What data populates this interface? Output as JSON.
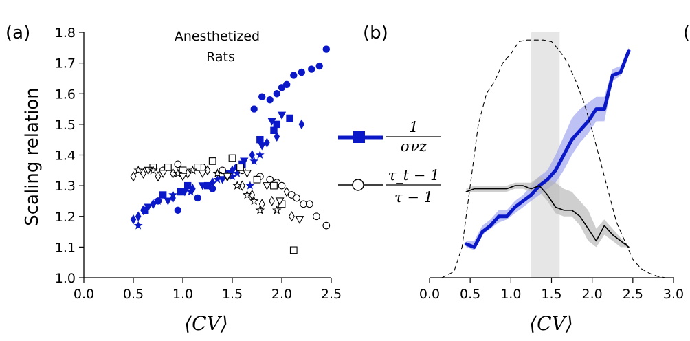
{
  "panel_labels": {
    "a": "(a)",
    "b": "(b)",
    "c": "("
  },
  "legend": {
    "sigma_entry": {
      "numerator": "1",
      "denominator": "σνz",
      "color": "#0a18c8",
      "marker": "square"
    },
    "tau_entry": {
      "numerator": "τ_t − 1",
      "denominator": "τ − 1",
      "color": "#000000",
      "marker": "open-circle"
    }
  },
  "chart_data": [
    {
      "type": "scatter",
      "panel": "(a)",
      "title": "Anesthetized\nRats",
      "xlabel": "⟨CV⟩",
      "ylabel": "Scaling relation",
      "xlim": [
        0.0,
        2.5
      ],
      "ylim": [
        1.0,
        1.8
      ],
      "xticks": [
        "0.0",
        "0.5",
        "1.0",
        "1.5",
        "2.0",
        "2.5"
      ],
      "yticks": [
        "1.0",
        "1.1",
        "1.2",
        "1.3",
        "1.4",
        "1.5",
        "1.6",
        "1.7",
        "1.8"
      ],
      "grid": false,
      "series": [
        {
          "group": "sigma",
          "marker": "diamond",
          "color": "#0a18c8",
          "filled": true,
          "points": [
            [
              0.5,
              1.19
            ],
            [
              0.55,
              1.2
            ],
            [
              0.6,
              1.22
            ],
            [
              0.7,
              1.24
            ],
            [
              0.9,
              1.26
            ],
            [
              1.1,
              1.29
            ],
            [
              1.3,
              1.31
            ],
            [
              1.5,
              1.35
            ],
            [
              1.7,
              1.4
            ],
            [
              1.85,
              1.44
            ],
            [
              1.95,
              1.46
            ],
            [
              2.2,
              1.5
            ]
          ]
        },
        {
          "group": "sigma",
          "marker": "circle",
          "color": "#0a18c8",
          "filled": true,
          "points": [
            [
              0.75,
              1.25
            ],
            [
              0.95,
              1.22
            ],
            [
              1.15,
              1.26
            ],
            [
              1.3,
              1.29
            ],
            [
              1.55,
              1.36
            ],
            [
              1.72,
              1.55
            ],
            [
              1.8,
              1.59
            ],
            [
              1.88,
              1.58
            ],
            [
              1.95,
              1.6
            ],
            [
              2.0,
              1.62
            ],
            [
              2.05,
              1.63
            ],
            [
              2.12,
              1.66
            ],
            [
              2.2,
              1.67
            ],
            [
              2.3,
              1.68
            ],
            [
              2.38,
              1.69
            ],
            [
              2.45,
              1.745
            ]
          ]
        },
        {
          "group": "sigma",
          "marker": "square",
          "color": "#0a18c8",
          "filled": true,
          "points": [
            [
              0.62,
              1.22
            ],
            [
              0.8,
              1.27
            ],
            [
              0.98,
              1.28
            ],
            [
              1.05,
              1.3
            ],
            [
              1.25,
              1.3
            ],
            [
              1.45,
              1.34
            ],
            [
              1.6,
              1.37
            ],
            [
              1.78,
              1.45
            ],
            [
              1.92,
              1.48
            ],
            [
              1.95,
              1.5
            ],
            [
              2.08,
              1.52
            ]
          ]
        },
        {
          "group": "sigma",
          "marker": "triangle-down",
          "color": "#0a18c8",
          "filled": true,
          "points": [
            [
              0.65,
              1.23
            ],
            [
              0.85,
              1.25
            ],
            [
              1.02,
              1.28
            ],
            [
              1.2,
              1.3
            ],
            [
              1.4,
              1.32
            ],
            [
              1.62,
              1.38
            ],
            [
              1.8,
              1.43
            ],
            [
              1.9,
              1.51
            ],
            [
              2.0,
              1.53
            ]
          ]
        },
        {
          "group": "sigma",
          "marker": "star",
          "color": "#0a18c8",
          "filled": true,
          "points": [
            [
              0.55,
              1.17
            ],
            [
              0.75,
              1.25
            ],
            [
              0.9,
              1.27
            ],
            [
              1.08,
              1.28
            ],
            [
              1.35,
              1.32
            ],
            [
              1.5,
              1.33
            ],
            [
              1.55,
              1.34
            ],
            [
              1.68,
              1.3
            ],
            [
              1.72,
              1.38
            ],
            [
              1.78,
              1.4
            ]
          ]
        },
        {
          "group": "tau",
          "marker": "diamond",
          "color": "#000000",
          "filled": false,
          "points": [
            [
              0.5,
              1.33
            ],
            [
              0.6,
              1.34
            ],
            [
              0.75,
              1.33
            ],
            [
              0.9,
              1.34
            ],
            [
              1.05,
              1.34
            ],
            [
              1.25,
              1.35
            ],
            [
              1.45,
              1.33
            ],
            [
              1.6,
              1.3
            ],
            [
              1.7,
              1.27
            ],
            [
              1.8,
              1.24
            ],
            [
              1.9,
              1.25
            ],
            [
              2.05,
              1.28
            ],
            [
              2.1,
              1.2
            ]
          ]
        },
        {
          "group": "tau",
          "marker": "circle",
          "color": "#000000",
          "filled": false,
          "points": [
            [
              0.8,
              1.35
            ],
            [
              0.95,
              1.37
            ],
            [
              1.2,
              1.36
            ],
            [
              1.4,
              1.35
            ],
            [
              1.6,
              1.35
            ],
            [
              1.78,
              1.33
            ],
            [
              1.88,
              1.32
            ],
            [
              1.95,
              1.31
            ],
            [
              2.0,
              1.3
            ],
            [
              2.1,
              1.27
            ],
            [
              2.15,
              1.26
            ],
            [
              2.22,
              1.24
            ],
            [
              2.28,
              1.24
            ],
            [
              2.35,
              1.2
            ],
            [
              2.45,
              1.17
            ]
          ]
        },
        {
          "group": "tau",
          "marker": "square",
          "color": "#000000",
          "filled": false,
          "points": [
            [
              0.7,
              1.36
            ],
            [
              0.85,
              1.36
            ],
            [
              1.0,
              1.35
            ],
            [
              1.15,
              1.36
            ],
            [
              1.3,
              1.38
            ],
            [
              1.5,
              1.39
            ],
            [
              1.58,
              1.36
            ],
            [
              1.75,
              1.32
            ],
            [
              1.92,
              1.3
            ],
            [
              2.0,
              1.24
            ],
            [
              2.12,
              1.09
            ]
          ]
        },
        {
          "group": "tau",
          "marker": "triangle-down",
          "color": "#000000",
          "filled": false,
          "points": [
            [
              0.65,
              1.35
            ],
            [
              0.8,
              1.34
            ],
            [
              1.0,
              1.33
            ],
            [
              1.2,
              1.34
            ],
            [
              1.45,
              1.33
            ],
            [
              1.65,
              1.34
            ],
            [
              1.85,
              1.3
            ],
            [
              1.98,
              1.25
            ],
            [
              2.18,
              1.19
            ]
          ]
        },
        {
          "group": "tau",
          "marker": "star",
          "color": "#000000",
          "filled": false,
          "points": [
            [
              0.55,
              1.35
            ],
            [
              0.7,
              1.35
            ],
            [
              0.95,
              1.34
            ],
            [
              1.1,
              1.35
            ],
            [
              1.35,
              1.34
            ],
            [
              1.55,
              1.3
            ],
            [
              1.65,
              1.27
            ],
            [
              1.72,
              1.25
            ],
            [
              1.78,
              1.22
            ],
            [
              1.95,
              1.22
            ]
          ]
        }
      ]
    },
    {
      "type": "line",
      "panel": "(b)",
      "xlabel": "⟨CV⟩",
      "ylabel": "",
      "xlim": [
        0.0,
        3.0
      ],
      "ylim": [
        1.0,
        1.8
      ],
      "xticks": [
        "0.0",
        "0.5",
        "1.0",
        "1.5",
        "2.0",
        "2.5",
        "3.0"
      ],
      "grid": false,
      "highlight_band": {
        "x": [
          1.25,
          1.6
        ],
        "color": "#e6e6e6"
      },
      "series": [
        {
          "group": "sigma",
          "style": "thick",
          "color": "#0a18c8",
          "band_color": "#9aa0ee",
          "x": [
            0.45,
            0.55,
            0.65,
            0.75,
            0.85,
            0.95,
            1.05,
            1.15,
            1.25,
            1.35,
            1.45,
            1.55,
            1.65,
            1.75,
            1.85,
            1.95,
            2.05,
            2.15,
            2.25,
            2.35,
            2.45
          ],
          "y": [
            1.11,
            1.1,
            1.15,
            1.17,
            1.2,
            1.2,
            1.23,
            1.25,
            1.27,
            1.3,
            1.32,
            1.35,
            1.4,
            1.45,
            1.48,
            1.51,
            1.55,
            1.55,
            1.66,
            1.67,
            1.74
          ],
          "y_lower": [
            1.1,
            1.09,
            1.14,
            1.16,
            1.18,
            1.19,
            1.21,
            1.23,
            1.25,
            1.27,
            1.29,
            1.31,
            1.35,
            1.4,
            1.44,
            1.47,
            1.51,
            1.51,
            1.64,
            1.66,
            1.73
          ],
          "y_upper": [
            1.12,
            1.12,
            1.17,
            1.19,
            1.22,
            1.22,
            1.25,
            1.27,
            1.3,
            1.33,
            1.35,
            1.4,
            1.46,
            1.52,
            1.55,
            1.57,
            1.59,
            1.59,
            1.68,
            1.69,
            1.75
          ]
        },
        {
          "group": "tau",
          "style": "thin",
          "color": "#000000",
          "band_color": "#b5b5b5",
          "x": [
            0.45,
            0.55,
            0.65,
            0.75,
            0.85,
            0.95,
            1.05,
            1.15,
            1.25,
            1.35,
            1.45,
            1.55,
            1.65,
            1.75,
            1.85,
            1.95,
            2.05,
            2.15,
            2.25,
            2.35,
            2.45
          ],
          "y": [
            1.28,
            1.29,
            1.29,
            1.29,
            1.29,
            1.29,
            1.3,
            1.3,
            1.29,
            1.3,
            1.27,
            1.23,
            1.22,
            1.22,
            1.2,
            1.16,
            1.12,
            1.17,
            1.14,
            1.12,
            1.1
          ],
          "y_lower": [
            1.28,
            1.28,
            1.28,
            1.28,
            1.28,
            1.28,
            1.29,
            1.29,
            1.28,
            1.28,
            1.25,
            1.21,
            1.2,
            1.2,
            1.17,
            1.12,
            1.1,
            1.14,
            1.12,
            1.1,
            1.1
          ],
          "y_upper": [
            1.29,
            1.3,
            1.3,
            1.3,
            1.3,
            1.3,
            1.31,
            1.31,
            1.31,
            1.33,
            1.32,
            1.31,
            1.29,
            1.28,
            1.25,
            1.22,
            1.16,
            1.19,
            1.16,
            1.13,
            1.1
          ]
        },
        {
          "group": "distribution",
          "style": "dashed",
          "color": "#000000",
          "x": [
            0.15,
            0.3,
            0.4,
            0.5,
            0.6,
            0.7,
            0.8,
            0.9,
            1.0,
            1.1,
            1.2,
            1.3,
            1.4,
            1.5,
            1.6,
            1.7,
            1.8,
            1.9,
            2.0,
            2.1,
            2.2,
            2.3,
            2.4,
            2.5,
            2.6,
            2.7,
            2.8,
            2.9,
            3.0
          ],
          "y": [
            1.0,
            1.02,
            1.1,
            1.3,
            1.5,
            1.6,
            1.64,
            1.7,
            1.73,
            1.77,
            1.775,
            1.775,
            1.775,
            1.77,
            1.74,
            1.7,
            1.64,
            1.57,
            1.48,
            1.38,
            1.28,
            1.18,
            1.12,
            1.06,
            1.03,
            1.015,
            1.005,
            1.0,
            1.0
          ]
        }
      ]
    }
  ]
}
